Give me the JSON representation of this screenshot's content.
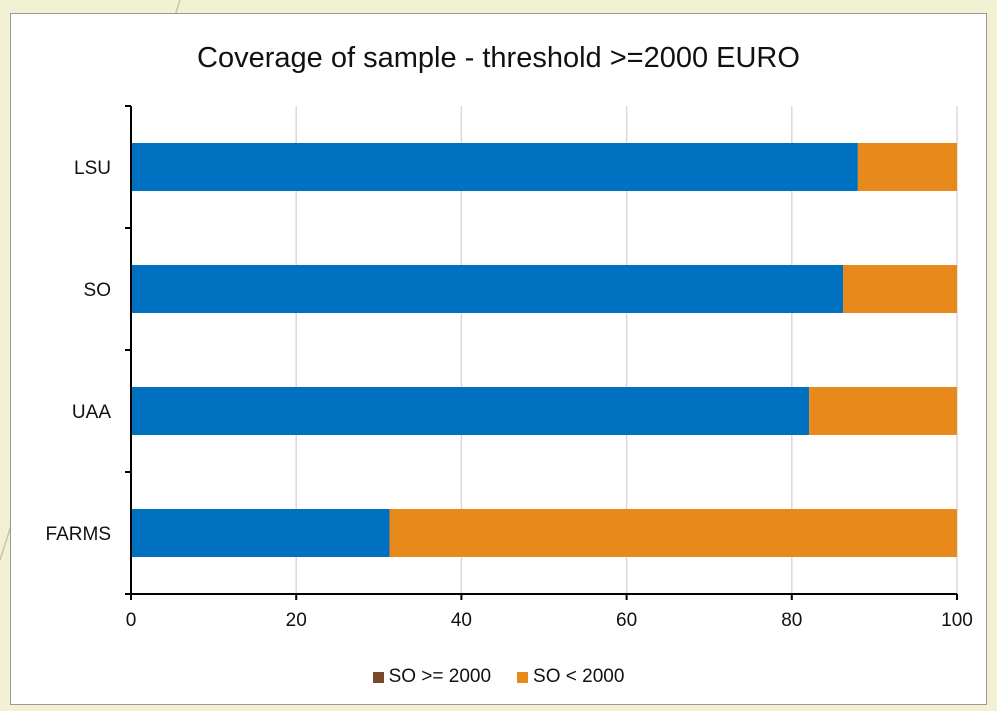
{
  "chart_data": {
    "type": "bar",
    "orientation": "horizontal",
    "stacked": true,
    "title": "Coverage of sample - threshold >=2000 EURO",
    "categories": [
      "LSU",
      "SO",
      "UAA",
      "FARMS"
    ],
    "series": [
      {
        "name": "SO >= 2000",
        "values": [
          88,
          86.2,
          82.1,
          31.3
        ],
        "color": "#0070c0",
        "legend_color": "#7b4a2a"
      },
      {
        "name": "SO < 2000",
        "values": [
          12,
          13.8,
          17.9,
          68.7
        ],
        "color": "#e8891b",
        "legend_color": "#e8891b"
      }
    ],
    "xlim": [
      0,
      100
    ],
    "xticks": [
      0,
      20,
      40,
      60,
      80,
      100
    ],
    "grid": true,
    "legend_position": "bottom",
    "xlabel": "",
    "ylabel": ""
  }
}
